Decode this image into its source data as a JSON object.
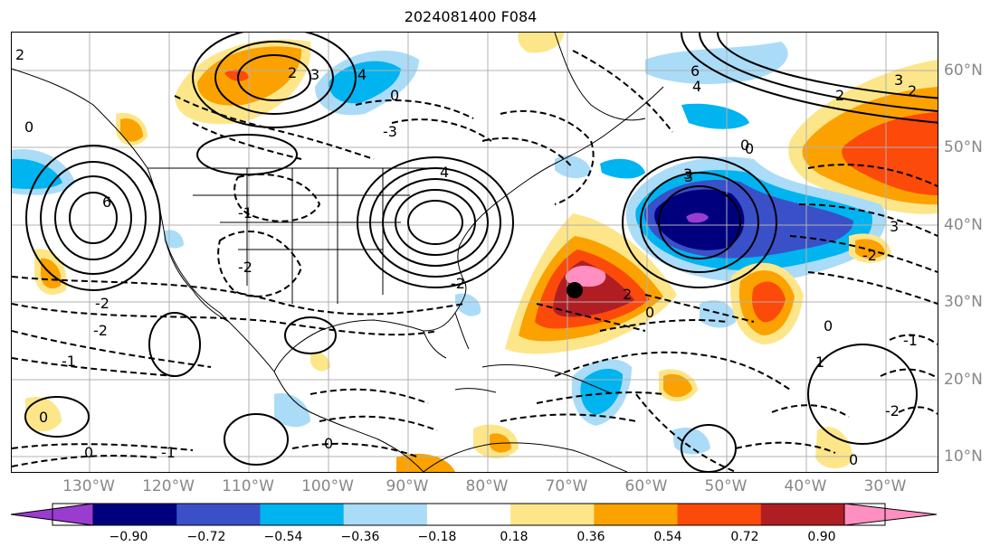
{
  "title": "2024081400 F084",
  "longitude_labels": [
    "130°W",
    "120°W",
    "110°W",
    "100°W",
    "90°W",
    "80°W",
    "70°W",
    "60°W",
    "50°W",
    "40°W",
    "30°W"
  ],
  "latitude_labels": [
    "60°N",
    "50°N",
    "40°N",
    "30°N",
    "20°N",
    "10°N"
  ],
  "colorbar": {
    "ticks": [
      "−0.90",
      "−0.72",
      "−0.54",
      "−0.36",
      "−0.18",
      "0.18",
      "0.36",
      "0.54",
      "0.72",
      "0.90"
    ],
    "colors": [
      "#9a3cd0",
      "#00007f",
      "#3a50c8",
      "#00b4f0",
      "#aadcf8",
      "#ffffff",
      "#fde68a",
      "#fba200",
      "#fc4a0a",
      "#b01e24",
      "#ff8fc0"
    ]
  },
  "contour_labels": [
    "2",
    "3",
    "4",
    "6",
    "0",
    "-1",
    "-2",
    "-3",
    "4",
    "3",
    "0",
    "0",
    "6",
    "4",
    "3",
    "2",
    "-2",
    "0",
    "-1",
    "-2",
    "2",
    "0",
    "-1",
    "0",
    "0",
    "0",
    "0",
    "1",
    "-2",
    "-1",
    "2",
    "0",
    "3",
    "-2",
    "2",
    "-2",
    "3"
  ],
  "marker": "black dot at ~67°W 32°N"
}
